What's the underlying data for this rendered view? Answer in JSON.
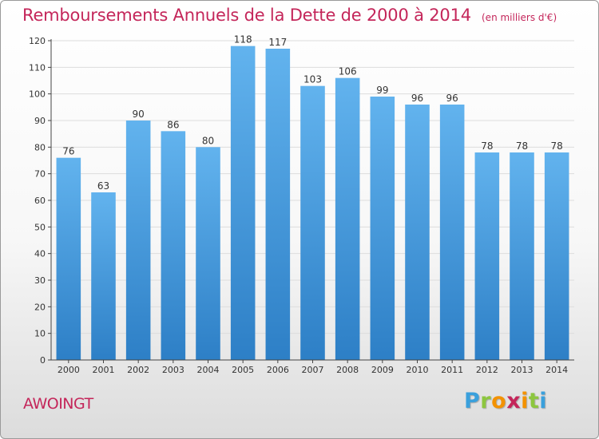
{
  "colors": {
    "title": "#c4265a",
    "bar_top": "#62b3ee",
    "bar_bottom": "#2d7fc6",
    "grid": "#dddddd",
    "axis": "#444444"
  },
  "chart_data": {
    "type": "bar",
    "title": "Remboursements Annuels de la Dette de 2000 à 2014",
    "subtitle": "(en milliers d'€)",
    "xlabel": "",
    "ylabel": "",
    "ylim": [
      0,
      120
    ],
    "yticks": [
      0,
      10,
      20,
      30,
      40,
      50,
      60,
      70,
      80,
      90,
      100,
      110,
      120
    ],
    "grid": true,
    "categories": [
      "2000",
      "2001",
      "2002",
      "2003",
      "2004",
      "2005",
      "2006",
      "2007",
      "2008",
      "2009",
      "2010",
      "2011",
      "2012",
      "2013",
      "2014"
    ],
    "values": [
      76,
      63,
      90,
      86,
      80,
      118,
      117,
      103,
      106,
      99,
      96,
      96,
      78,
      78,
      78
    ]
  },
  "commune": "AWOINGT",
  "brand": {
    "letters": [
      "P",
      "r",
      "o",
      "x",
      "i",
      "t",
      "i"
    ],
    "colors": [
      "#3aa0dc",
      "#8dc63f",
      "#f39200",
      "#c4265a",
      "#f39200",
      "#8dc63f",
      "#3aa0dc"
    ]
  }
}
